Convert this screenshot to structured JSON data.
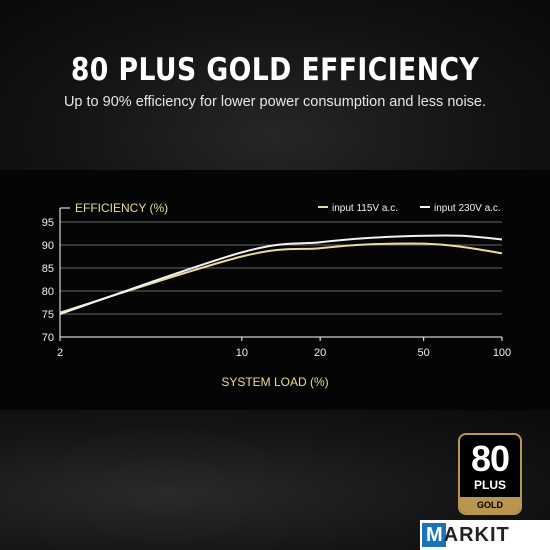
{
  "header": {
    "title": "80 PLUS GOLD EFFICIENCY",
    "subtitle": "Up to 90% efficiency for lower power consumption and less noise."
  },
  "badge": {
    "number": "80",
    "plus": "PLUS",
    "tier": "GOLD"
  },
  "watermark": {
    "first": "M",
    "rest": "ARKIT"
  },
  "colors": {
    "series_115v": "#e8dc9a",
    "series_230v": "#f2f2f2",
    "axis_label": "#e8dc9a",
    "badge_gold": "#b9954f"
  },
  "chart_data": {
    "type": "line",
    "ylabel": "EFFICIENCY (%)",
    "xlabel": "SYSTEM LOAD (%)",
    "x_scale": "log",
    "xlim": [
      2,
      100
    ],
    "ylim": [
      70,
      95
    ],
    "xticks": [
      2,
      10,
      20,
      50,
      100
    ],
    "yticks": [
      70,
      75,
      80,
      85,
      90,
      95
    ],
    "grid": true,
    "legend_position": "top-right",
    "series": [
      {
        "name": "input 115V a.c.",
        "x": [
          2,
          10,
          20,
          30,
          50,
          70,
          100
        ],
        "y": [
          75.3,
          87.5,
          89.3,
          90.1,
          90.3,
          89.6,
          88.2
        ]
      },
      {
        "name": "input 230V a.c.",
        "x": [
          2,
          10,
          20,
          30,
          50,
          70,
          100
        ],
        "y": [
          75.0,
          88.4,
          90.6,
          91.5,
          92.0,
          92.0,
          91.2
        ]
      }
    ]
  }
}
